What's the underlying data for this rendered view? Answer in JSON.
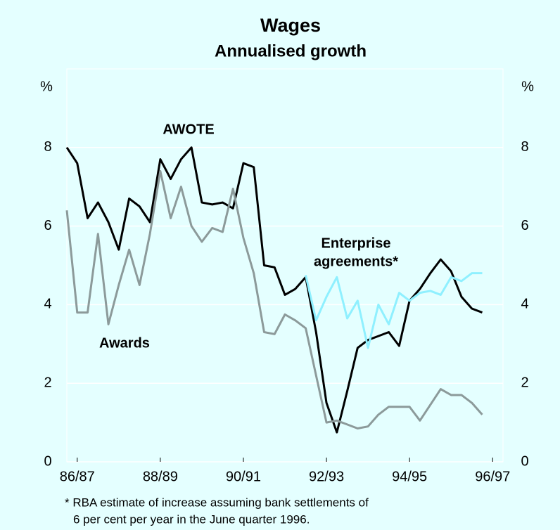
{
  "chart_data": {
    "type": "line",
    "title": "Wages",
    "subtitle": "Annualised growth",
    "y_unit_left": "%",
    "y_unit_right": "%",
    "x": [
      0,
      1,
      2,
      3,
      4,
      5,
      6,
      7,
      8,
      9,
      10,
      11,
      12,
      13,
      14,
      15,
      16,
      17,
      18,
      19,
      20,
      21,
      22,
      23,
      24,
      25,
      26,
      27,
      28,
      29,
      30,
      31,
      32,
      33,
      34,
      35,
      36,
      37,
      38,
      39,
      40
    ],
    "xlim": [
      0,
      42
    ],
    "xticks": [
      {
        "value": 1,
        "label": "86/87"
      },
      {
        "value": 9,
        "label": "88/89"
      },
      {
        "value": 17,
        "label": "90/91"
      },
      {
        "value": 25,
        "label": "92/93"
      },
      {
        "value": 33,
        "label": "94/95"
      },
      {
        "value": 41,
        "label": "96/97"
      }
    ],
    "ylim": [
      0,
      10
    ],
    "yticks": [
      0,
      2,
      4,
      6,
      8
    ],
    "grid": true,
    "series": [
      {
        "name": "AWOTE",
        "color": "#000000",
        "values": [
          8.0,
          7.6,
          6.2,
          6.6,
          6.1,
          5.4,
          6.7,
          6.5,
          6.1,
          7.7,
          7.2,
          7.7,
          8.0,
          6.6,
          6.55,
          6.6,
          6.45,
          7.6,
          7.5,
          5.0,
          4.95,
          4.25,
          4.4,
          4.7,
          3.3,
          1.5,
          0.75,
          1.8,
          2.9,
          3.1,
          3.2,
          3.3,
          2.95,
          4.1,
          4.4,
          4.8,
          5.15,
          4.85,
          4.2,
          3.9,
          3.8
        ]
      },
      {
        "name": "Awards",
        "color": "#8c9a9a",
        "values": [
          6.4,
          3.8,
          3.8,
          5.8,
          3.5,
          4.5,
          5.4,
          4.5,
          5.8,
          7.4,
          6.2,
          7.0,
          6.0,
          5.6,
          5.95,
          5.85,
          6.95,
          5.7,
          4.8,
          3.3,
          3.25,
          3.75,
          3.6,
          3.4,
          2.2,
          1.0,
          1.05,
          0.95,
          0.85,
          0.9,
          1.2,
          1.4,
          1.4,
          1.4,
          1.05,
          1.45,
          1.85,
          1.7,
          1.7,
          1.5,
          1.2
        ]
      },
      {
        "name": "Enterprise agreements*",
        "color": "#8ff0ff",
        "values": [
          null,
          null,
          null,
          null,
          null,
          null,
          null,
          null,
          null,
          null,
          null,
          null,
          null,
          null,
          null,
          null,
          null,
          null,
          null,
          null,
          null,
          null,
          null,
          4.75,
          3.6,
          4.2,
          4.7,
          3.65,
          4.1,
          2.9,
          4.0,
          3.5,
          4.3,
          4.1,
          4.3,
          4.35,
          4.25,
          4.7,
          4.6,
          4.8,
          4.8
        ]
      }
    ],
    "annotations": [
      "AWOTE",
      "Enterprise",
      "agreements*",
      "Awards"
    ],
    "footnote": [
      "* RBA estimate of increase assuming bank settlements of",
      "6 per cent per year in the June quarter 1996."
    ]
  }
}
